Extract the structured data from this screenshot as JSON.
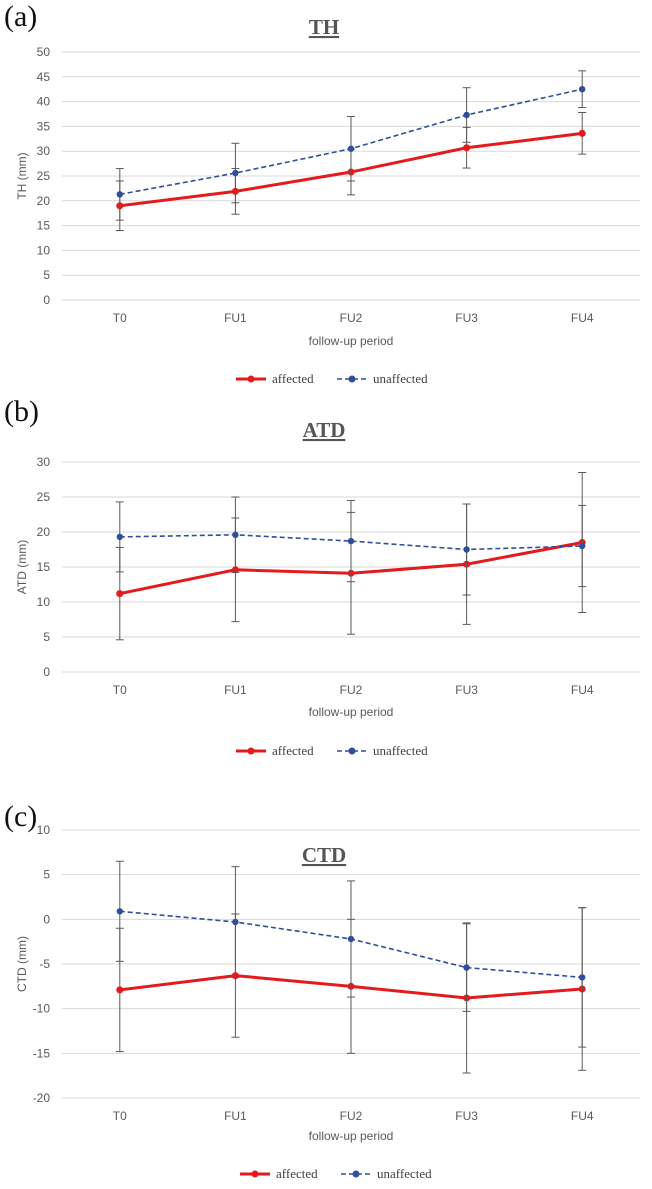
{
  "colors": {
    "affected": "#e41a1c",
    "unaffected": "#2f4f9a",
    "errorbar": "#595959"
  },
  "chart_data": [
    {
      "type": "line",
      "panel": "(a)",
      "title": "TH",
      "xlabel": "follow-up period",
      "ylabel": "TH (mm)",
      "ylim": [
        0,
        50
      ],
      "yticks": [
        0,
        5,
        10,
        15,
        20,
        25,
        30,
        35,
        40,
        45,
        50
      ],
      "categories": [
        "T0",
        "FU1",
        "FU2",
        "FU3",
        "FU4"
      ],
      "grid": true,
      "legend": "bottom",
      "series": [
        {
          "name": "affected",
          "style": "solid",
          "values": [
            19.0,
            21.9,
            25.8,
            30.7,
            33.6
          ],
          "error": [
            5.0,
            4.6,
            4.6,
            4.1,
            4.2
          ]
        },
        {
          "name": "unaffected",
          "style": "dashed",
          "values": [
            21.3,
            25.6,
            30.5,
            37.3,
            42.5
          ],
          "error": [
            5.2,
            6.0,
            6.5,
            5.5,
            3.7
          ]
        }
      ]
    },
    {
      "type": "line",
      "panel": "(b)",
      "title": "ATD",
      "xlabel": "follow-up period",
      "ylabel": "ATD (mm)",
      "ylim": [
        0,
        30
      ],
      "yticks": [
        0,
        5,
        10,
        15,
        20,
        25,
        30
      ],
      "categories": [
        "T0",
        "FU1",
        "FU2",
        "FU3",
        "FU4"
      ],
      "grid": true,
      "legend": "bottom",
      "series": [
        {
          "name": "affected",
          "style": "solid",
          "values": [
            11.2,
            14.6,
            14.1,
            15.4,
            18.5
          ],
          "error": [
            6.6,
            7.4,
            8.7,
            8.6,
            10.0
          ]
        },
        {
          "name": "unaffected",
          "style": "dashed",
          "values": [
            19.3,
            19.6,
            18.7,
            17.5,
            18.0
          ],
          "error": [
            5.0,
            5.4,
            5.8,
            6.5,
            5.8
          ]
        }
      ]
    },
    {
      "type": "line",
      "panel": "(c)",
      "title": "CTD",
      "xlabel": "follow-up period",
      "ylabel": "CTD (mm)",
      "ylim": [
        -20,
        10
      ],
      "yticks": [
        -20,
        -15,
        -10,
        -5,
        0,
        5,
        10
      ],
      "categories": [
        "T0",
        "FU1",
        "FU2",
        "FU3",
        "FU4"
      ],
      "grid": true,
      "legend": "bottom",
      "series": [
        {
          "name": "affected",
          "style": "solid",
          "values": [
            -7.9,
            -6.3,
            -7.5,
            -8.8,
            -7.8
          ],
          "error": [
            6.9,
            6.9,
            7.5,
            8.4,
            9.1
          ]
        },
        {
          "name": "unaffected",
          "style": "dashed",
          "values": [
            0.9,
            -0.3,
            -2.2,
            -5.4,
            -6.5
          ],
          "error": [
            5.6,
            6.2,
            6.5,
            4.9,
            7.8
          ]
        }
      ]
    }
  ]
}
